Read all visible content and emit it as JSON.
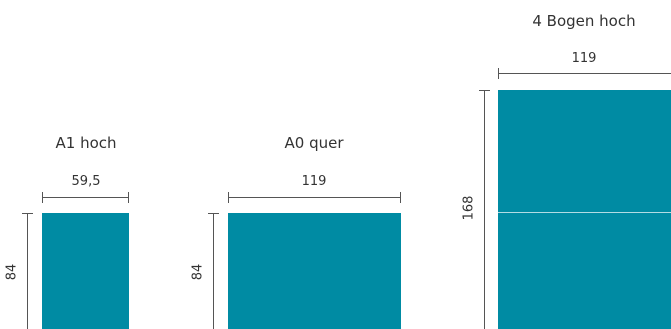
{
  "formats": [
    {
      "title": "A1 hoch",
      "width_label": "59,5",
      "height_label": "84",
      "sheets": 1
    },
    {
      "title": "A0 quer",
      "width_label": "119",
      "height_label": "84",
      "sheets": 1
    },
    {
      "title": "4 Bogen hoch",
      "width_label": "119",
      "height_label": "168",
      "sheets": 2
    }
  ],
  "colors": {
    "sheet": "#008ba3",
    "dimension_line": "#555555"
  }
}
